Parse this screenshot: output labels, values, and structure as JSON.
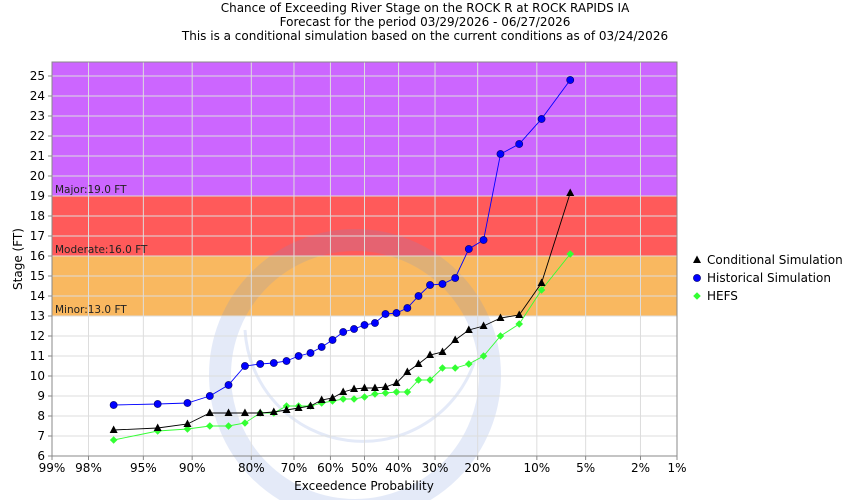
{
  "chart_data": {
    "type": "line",
    "title_lines": [
      "Chance of Exceeding River Stage on the ROCK R at ROCK RAPIDS IA",
      "Forecast for the period 03/29/2026 - 06/27/2026",
      "This is a conditional simulation based on the current conditions as of 03/24/2026"
    ],
    "xlabel": "Exceedence Probability",
    "ylabel": "Stage (FT)",
    "x_scale": "normal-probability (exceedence, reversed)",
    "x_ticks": [
      {
        "p": 99,
        "label": "99%"
      },
      {
        "p": 98,
        "label": "98%"
      },
      {
        "p": 95,
        "label": "95%"
      },
      {
        "p": 90,
        "label": "90%"
      },
      {
        "p": 80,
        "label": "80%"
      },
      {
        "p": 70,
        "label": "70%"
      },
      {
        "p": 60,
        "label": "60%"
      },
      {
        "p": 50,
        "label": "50%"
      },
      {
        "p": 40,
        "label": "40%"
      },
      {
        "p": 30,
        "label": "30%"
      },
      {
        "p": 20,
        "label": "20%"
      },
      {
        "p": 10,
        "label": "10%"
      },
      {
        "p": 5,
        "label": "5%"
      },
      {
        "p": 2,
        "label": "2%"
      },
      {
        "p": 1,
        "label": "1%"
      }
    ],
    "ylim": [
      6,
      25.7
    ],
    "y_ticks": [
      6,
      7,
      8,
      9,
      10,
      11,
      12,
      13,
      14,
      15,
      16,
      17,
      18,
      19,
      20,
      21,
      22,
      23,
      24,
      25
    ],
    "flood_bands": [
      {
        "label": "Minor:13.0 FT",
        "from": 13,
        "to": 16,
        "color": "#f9b860"
      },
      {
        "label": "Moderate:16.0 FT",
        "from": 16,
        "to": 19,
        "color": "#ff5a5a"
      },
      {
        "label": "Major:19.0 FT",
        "from": 19,
        "to": 25.7,
        "color": "#cc66ff"
      }
    ],
    "series": [
      {
        "name": "Conditional Simulation",
        "color": "#000000",
        "marker": "triangle",
        "points": [
          [
            96.9,
            7.3
          ],
          [
            93.8,
            7.4
          ],
          [
            90.6,
            7.6
          ],
          [
            87.5,
            8.15
          ],
          [
            84.4,
            8.15
          ],
          [
            81.3,
            8.15
          ],
          [
            78.1,
            8.15
          ],
          [
            75,
            8.2
          ],
          [
            71.9,
            8.3
          ],
          [
            68.8,
            8.4
          ],
          [
            65.6,
            8.5
          ],
          [
            62.5,
            8.8
          ],
          [
            59.4,
            8.9
          ],
          [
            56.3,
            9.2
          ],
          [
            53.1,
            9.35
          ],
          [
            50,
            9.4
          ],
          [
            46.9,
            9.4
          ],
          [
            43.8,
            9.45
          ],
          [
            40.6,
            9.65
          ],
          [
            37.5,
            10.2
          ],
          [
            34.4,
            10.6
          ],
          [
            31.3,
            11.05
          ],
          [
            28.1,
            11.2
          ],
          [
            25,
            11.8
          ],
          [
            21.9,
            12.3
          ],
          [
            18.8,
            12.5
          ],
          [
            15.6,
            12.9
          ],
          [
            12.5,
            13.05
          ],
          [
            9.4,
            14.65
          ],
          [
            6.3,
            19.15
          ]
        ]
      },
      {
        "name": "Historical Simulation",
        "color": "#0000ff",
        "marker": "circle",
        "points": [
          [
            96.9,
            8.55
          ],
          [
            93.8,
            8.6
          ],
          [
            90.6,
            8.65
          ],
          [
            87.5,
            9.0
          ],
          [
            84.4,
            9.55
          ],
          [
            81.3,
            10.5
          ],
          [
            78.1,
            10.6
          ],
          [
            75,
            10.65
          ],
          [
            71.9,
            10.75
          ],
          [
            68.8,
            11.0
          ],
          [
            65.6,
            11.15
          ],
          [
            62.5,
            11.45
          ],
          [
            59.4,
            11.8
          ],
          [
            56.3,
            12.2
          ],
          [
            53.1,
            12.35
          ],
          [
            50,
            12.55
          ],
          [
            46.9,
            12.65
          ],
          [
            43.8,
            13.1
          ],
          [
            40.6,
            13.15
          ],
          [
            37.5,
            13.4
          ],
          [
            34.4,
            14.0
          ],
          [
            31.3,
            14.55
          ],
          [
            28.1,
            14.6
          ],
          [
            25,
            14.9
          ],
          [
            21.9,
            16.35
          ],
          [
            18.8,
            16.8
          ],
          [
            15.6,
            21.1
          ],
          [
            12.5,
            21.6
          ],
          [
            9.4,
            22.85
          ],
          [
            6.3,
            24.8
          ]
        ]
      },
      {
        "name": "HEFS",
        "color": "#33ff33",
        "marker": "diamond",
        "points": [
          [
            96.9,
            6.8
          ],
          [
            93.8,
            7.25
          ],
          [
            90.6,
            7.35
          ],
          [
            87.5,
            7.5
          ],
          [
            84.4,
            7.5
          ],
          [
            81.3,
            7.65
          ],
          [
            78.1,
            8.15
          ],
          [
            75,
            8.15
          ],
          [
            71.9,
            8.5
          ],
          [
            68.8,
            8.5
          ],
          [
            65.6,
            8.5
          ],
          [
            62.5,
            8.65
          ],
          [
            59.4,
            8.75
          ],
          [
            56.3,
            8.85
          ],
          [
            53.1,
            8.85
          ],
          [
            50,
            8.95
          ],
          [
            46.9,
            9.1
          ],
          [
            43.8,
            9.15
          ],
          [
            40.6,
            9.2
          ],
          [
            37.5,
            9.2
          ],
          [
            34.4,
            9.8
          ],
          [
            31.3,
            9.8
          ],
          [
            28.1,
            10.4
          ],
          [
            25,
            10.4
          ],
          [
            21.9,
            10.6
          ],
          [
            18.8,
            11.0
          ],
          [
            15.6,
            12.0
          ],
          [
            12.5,
            12.6
          ],
          [
            9.4,
            14.3
          ],
          [
            6.3,
            16.1
          ]
        ]
      }
    ],
    "legend_placement": "right"
  }
}
